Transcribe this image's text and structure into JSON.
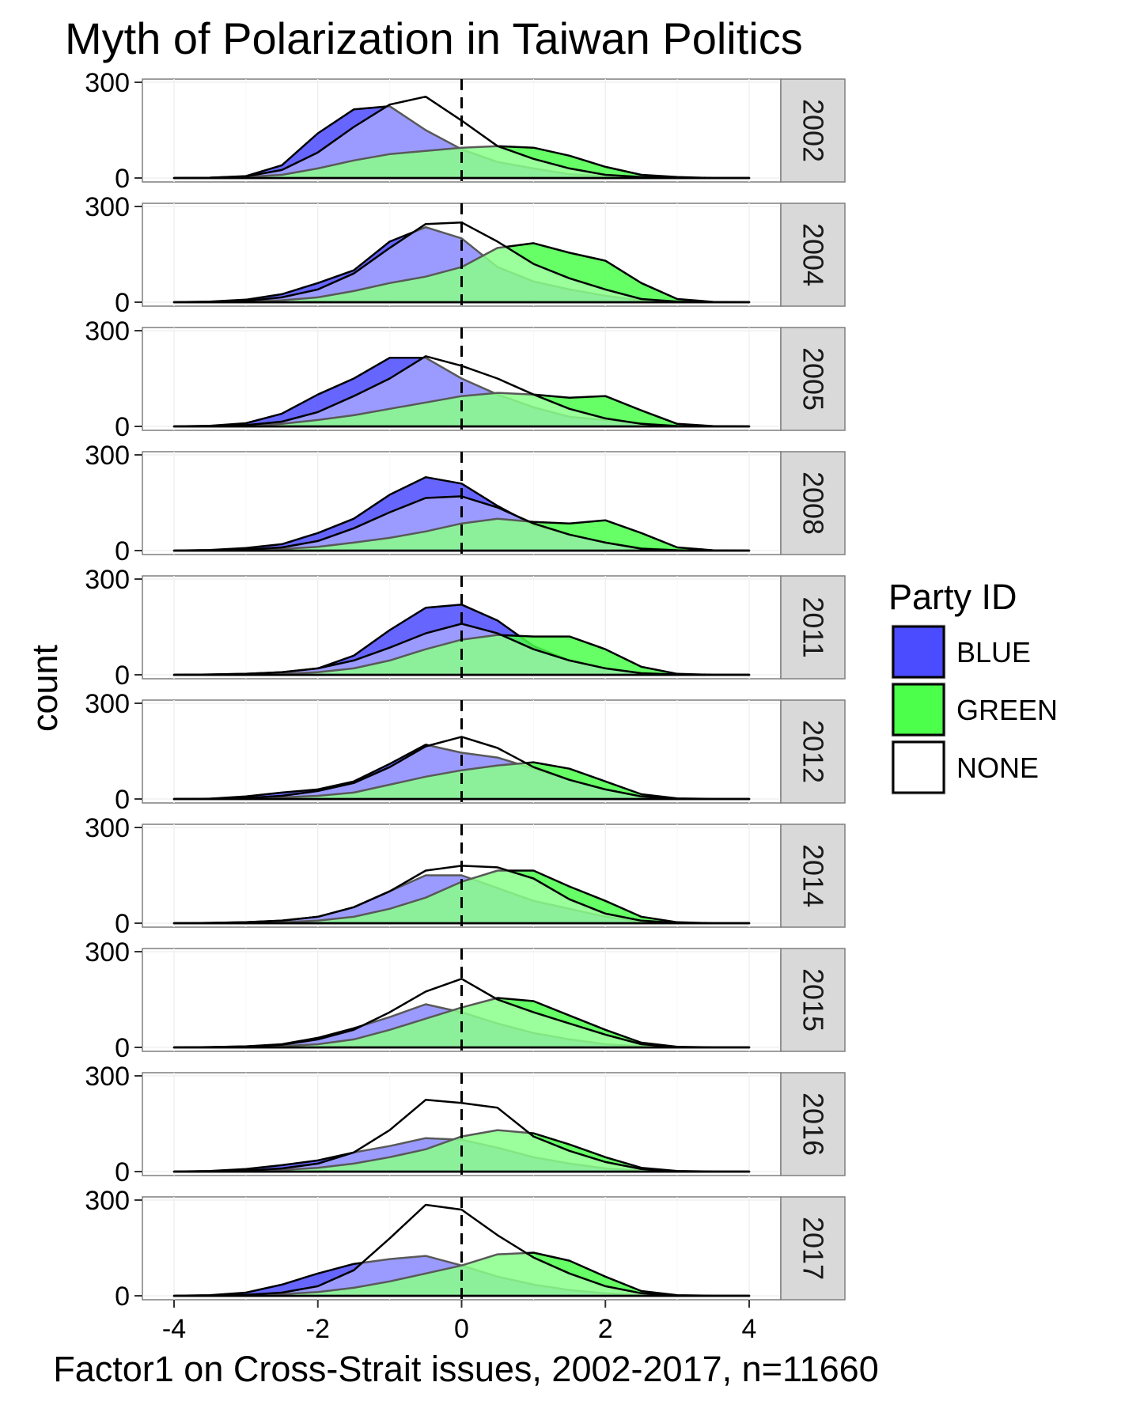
{
  "chart_data": {
    "type": "area",
    "subtype": "faceted overlapping density-count curves",
    "title": "Myth of Polarization in Taiwan Politics",
    "xlabel": "Factor1 on Cross-Strait issues, 2002-2017, n=11660",
    "ylabel": "count",
    "xlim": [
      -4,
      4
    ],
    "ylim": [
      0,
      300
    ],
    "x_ticks": [
      -4,
      -2,
      0,
      2,
      4
    ],
    "y_ticks": [
      0,
      300
    ],
    "reference_line": {
      "x": 0,
      "style": "dashed"
    },
    "legend": {
      "title": "Party ID",
      "placement": "right",
      "items": [
        {
          "label": "BLUE",
          "color": "#4b4bff"
        },
        {
          "label": "GREEN",
          "color": "#4bff4b"
        },
        {
          "label": "NONE",
          "color": "#ffffff"
        }
      ]
    },
    "fill_alpha": 0.6,
    "x": [
      -4,
      -3.5,
      -3,
      -2.5,
      -2,
      -1.5,
      -1,
      -0.5,
      0,
      0.5,
      1,
      1.5,
      2,
      2.5,
      3,
      3.5,
      4
    ],
    "panels": [
      {
        "year": "2002",
        "series": [
          {
            "name": "BLUE",
            "values": [
              0,
              1,
              6,
              40,
              140,
              215,
              225,
              150,
              90,
              50,
              30,
              12,
              5,
              2,
              0,
              0,
              0
            ]
          },
          {
            "name": "GREEN",
            "values": [
              0,
              0,
              3,
              10,
              30,
              55,
              75,
              85,
              95,
              100,
              95,
              70,
              35,
              10,
              3,
              0,
              0
            ]
          },
          {
            "name": "NONE",
            "values": [
              0,
              1,
              5,
              25,
              80,
              160,
              230,
              255,
              180,
              100,
              60,
              30,
              10,
              3,
              1,
              0,
              0
            ]
          }
        ]
      },
      {
        "year": "2004",
        "series": [
          {
            "name": "BLUE",
            "values": [
              0,
              2,
              8,
              25,
              60,
              100,
              190,
              235,
              200,
              110,
              65,
              40,
              20,
              5,
              1,
              0,
              0
            ]
          },
          {
            "name": "GREEN",
            "values": [
              0,
              0,
              2,
              6,
              15,
              35,
              60,
              80,
              110,
              170,
              185,
              155,
              130,
              60,
              10,
              1,
              0
            ]
          },
          {
            "name": "NONE",
            "values": [
              0,
              1,
              4,
              15,
              40,
              90,
              170,
              245,
              250,
              190,
              120,
              75,
              40,
              10,
              2,
              0,
              0
            ]
          }
        ]
      },
      {
        "year": "2005",
        "series": [
          {
            "name": "BLUE",
            "values": [
              0,
              2,
              10,
              40,
              100,
              150,
              215,
              215,
              150,
              100,
              60,
              30,
              20,
              10,
              2,
              0,
              0
            ]
          },
          {
            "name": "GREEN",
            "values": [
              0,
              0,
              2,
              8,
              20,
              35,
              55,
              75,
              95,
              105,
              100,
              90,
              95,
              50,
              8,
              1,
              0
            ]
          },
          {
            "name": "NONE",
            "values": [
              0,
              1,
              4,
              15,
              45,
              95,
              150,
              220,
              190,
              150,
              100,
              55,
              25,
              8,
              1,
              0,
              0
            ]
          }
        ]
      },
      {
        "year": "2008",
        "series": [
          {
            "name": "BLUE",
            "values": [
              0,
              2,
              8,
              20,
              55,
              100,
              175,
              230,
              210,
              140,
              80,
              50,
              25,
              8,
              2,
              0,
              0
            ]
          },
          {
            "name": "GREEN",
            "values": [
              0,
              0,
              2,
              5,
              12,
              25,
              40,
              60,
              85,
              100,
              90,
              85,
              95,
              55,
              10,
              1,
              0
            ]
          },
          {
            "name": "NONE",
            "values": [
              0,
              1,
              3,
              10,
              30,
              70,
              120,
              165,
              170,
              135,
              85,
              50,
              25,
              6,
              1,
              0,
              0
            ]
          }
        ]
      },
      {
        "year": "2011",
        "series": [
          {
            "name": "BLUE",
            "values": [
              0,
              1,
              3,
              8,
              20,
              60,
              140,
              210,
              220,
              170,
              90,
              45,
              20,
              5,
              1,
              0,
              0
            ]
          },
          {
            "name": "GREEN",
            "values": [
              0,
              0,
              1,
              3,
              8,
              20,
              45,
              80,
              110,
              125,
              120,
              120,
              80,
              25,
              3,
              0,
              0
            ]
          },
          {
            "name": "NONE",
            "values": [
              0,
              1,
              3,
              8,
              20,
              45,
              85,
              130,
              160,
              130,
              80,
              45,
              20,
              5,
              1,
              0,
              0
            ]
          }
        ]
      },
      {
        "year": "2012",
        "series": [
          {
            "name": "BLUE",
            "values": [
              0,
              1,
              8,
              20,
              30,
              55,
              110,
              170,
              145,
              130,
              95,
              60,
              30,
              8,
              1,
              0,
              0
            ]
          },
          {
            "name": "GREEN",
            "values": [
              0,
              0,
              2,
              5,
              10,
              20,
              45,
              70,
              90,
              105,
              115,
              95,
              55,
              15,
              2,
              0,
              0
            ]
          },
          {
            "name": "NONE",
            "values": [
              0,
              1,
              3,
              10,
              25,
              50,
              100,
              165,
              195,
              160,
              100,
              60,
              30,
              8,
              1,
              0,
              0
            ]
          }
        ]
      },
      {
        "year": "2014",
        "series": [
          {
            "name": "BLUE",
            "values": [
              0,
              1,
              3,
              8,
              20,
              50,
              100,
              150,
              150,
              110,
              70,
              45,
              20,
              5,
              1,
              0,
              0
            ]
          },
          {
            "name": "GREEN",
            "values": [
              0,
              0,
              1,
              3,
              8,
              20,
              45,
              80,
              130,
              165,
              165,
              115,
              70,
              20,
              3,
              0,
              0
            ]
          },
          {
            "name": "NONE",
            "values": [
              0,
              1,
              3,
              8,
              20,
              50,
              100,
              165,
              180,
              175,
              140,
              75,
              30,
              8,
              1,
              0,
              0
            ]
          }
        ]
      },
      {
        "year": "2015",
        "series": [
          {
            "name": "BLUE",
            "values": [
              0,
              1,
              3,
              10,
              30,
              60,
              95,
              135,
              110,
              75,
              45,
              25,
              10,
              3,
              1,
              0,
              0
            ]
          },
          {
            "name": "GREEN",
            "values": [
              0,
              0,
              1,
              4,
              10,
              25,
              55,
              90,
              125,
              155,
              145,
              100,
              55,
              15,
              2,
              0,
              0
            ]
          },
          {
            "name": "NONE",
            "values": [
              0,
              1,
              3,
              8,
              25,
              55,
              110,
              175,
              215,
              150,
              110,
              75,
              40,
              10,
              1,
              0,
              0
            ]
          }
        ]
      },
      {
        "year": "2016",
        "series": [
          {
            "name": "BLUE",
            "values": [
              0,
              2,
              8,
              20,
              35,
              60,
              80,
              105,
              100,
              75,
              45,
              25,
              10,
              3,
              1,
              0,
              0
            ]
          },
          {
            "name": "GREEN",
            "values": [
              0,
              0,
              2,
              5,
              12,
              25,
              45,
              70,
              110,
              130,
              120,
              85,
              45,
              12,
              2,
              0,
              0
            ]
          },
          {
            "name": "NONE",
            "values": [
              0,
              1,
              3,
              10,
              25,
              60,
              130,
              225,
              215,
              200,
              110,
              65,
              30,
              8,
              1,
              0,
              0
            ]
          }
        ]
      },
      {
        "year": "2017",
        "series": [
          {
            "name": "BLUE",
            "values": [
              0,
              2,
              10,
              35,
              70,
              100,
              115,
              125,
              95,
              60,
              35,
              18,
              8,
              2,
              0,
              0,
              0
            ]
          },
          {
            "name": "GREEN",
            "values": [
              0,
              0,
              2,
              5,
              12,
              25,
              45,
              70,
              95,
              130,
              135,
              110,
              60,
              15,
              2,
              0,
              0
            ]
          },
          {
            "name": "NONE",
            "values": [
              0,
              1,
              3,
              10,
              30,
              80,
              180,
              285,
              270,
              190,
              120,
              70,
              30,
              8,
              1,
              0,
              0
            ]
          }
        ]
      }
    ]
  }
}
